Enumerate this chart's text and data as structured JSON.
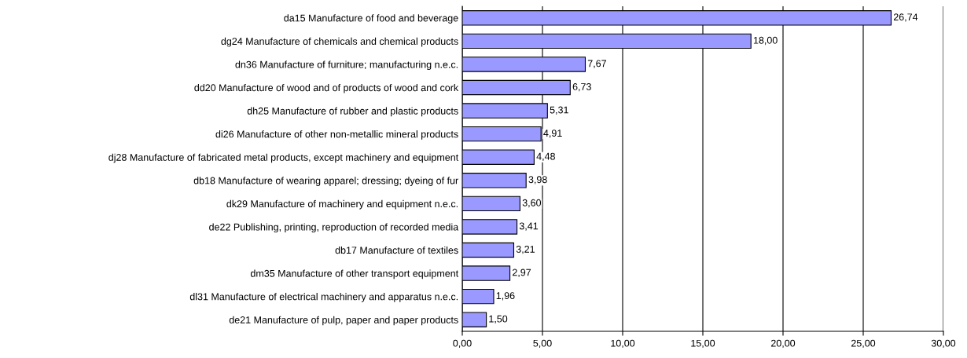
{
  "chart_data": {
    "type": "bar",
    "orientation": "horizontal",
    "categories": [
      "da15 Manufacture of food and beverage",
      "dg24 Manufacture of chemicals and chemical products",
      "dn36 Manufacture of furniture; manufacturing n.e.c.",
      "dd20 Manufacture of wood and of products of wood and cork",
      "dh25 Manufacture of rubber and plastic products",
      "di26 Manufacture of other non-metallic mineral products",
      "dj28 Manufacture of fabricated metal products, except machinery and equipment",
      "db18 Manufacture of wearing apparel; dressing; dyeing of fur",
      "dk29 Manufacture of machinery and equipment n.e.c.",
      "de22 Publishing, printing, reproduction of recorded media",
      "db17 Manufacture of textiles",
      "dm35 Manufacture of other transport equipment",
      "dl31 Manufacture of electrical machinery and apparatus n.e.c.",
      "de21 Manufacture of pulp, paper and paper products"
    ],
    "values": [
      26.74,
      18.0,
      7.67,
      6.73,
      5.31,
      4.91,
      4.48,
      3.98,
      3.6,
      3.41,
      3.21,
      2.97,
      1.96,
      1.5
    ],
    "value_labels": [
      "26,74",
      "18,00",
      "7,67",
      "6,73",
      "5,31",
      "4,91",
      "4,48",
      "3,98",
      "3,60",
      "3,41",
      "3,21",
      "2,97",
      "1,96",
      "1,50"
    ],
    "color": "#9999ff",
    "xlim": [
      0,
      30
    ],
    "xticks": [
      {
        "value": 0,
        "label": "0,00"
      },
      {
        "value": 5,
        "label": "5,00"
      },
      {
        "value": 10,
        "label": "10,00"
      },
      {
        "value": 15,
        "label": "15,00"
      },
      {
        "value": 20,
        "label": "20,00"
      },
      {
        "value": 25,
        "label": "25,00"
      },
      {
        "value": 30,
        "label": "30,00"
      }
    ],
    "grid": "x",
    "legend": false
  }
}
